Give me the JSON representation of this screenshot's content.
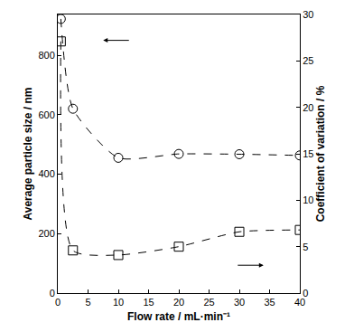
{
  "chart_data": {
    "type": "line",
    "x_label": "Flow rate / mL·min⁻¹",
    "y_label": "Average particle size / nm",
    "y2_label": "Coefficient of variation / %",
    "xlim": [
      0,
      40
    ],
    "xticks": [
      0,
      5,
      10,
      15,
      20,
      25,
      30,
      35,
      40
    ],
    "ylim": [
      0,
      937
    ],
    "yticks": [
      0,
      200,
      400,
      600,
      800
    ],
    "y2lim": [
      0,
      30
    ],
    "y2ticks": [
      0,
      5,
      10,
      15,
      20,
      25,
      30
    ],
    "grid": false,
    "x": [
      0.5,
      2.5,
      10,
      20,
      30,
      40
    ],
    "series": [
      {
        "name": "Average particle size",
        "color": "#000000",
        "marker": "circle-open",
        "line_style": "dash",
        "values": [
          922,
          620,
          455,
          468,
          467,
          463
        ]
      },
      {
        "name": "Coefficient of variation",
        "color": "#000000",
        "marker": "square-open",
        "line_style": "dash",
        "axis": "y2",
        "values": [
          27.1,
          4.6,
          4.1,
          5.0,
          6.6,
          6.8
        ]
      }
    ]
  }
}
